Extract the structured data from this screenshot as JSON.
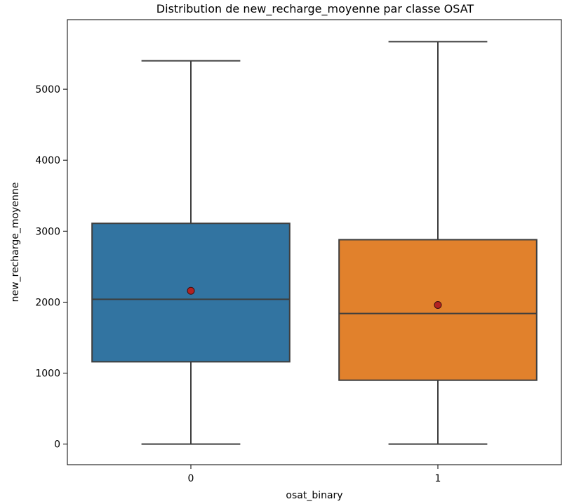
{
  "chart_data": {
    "type": "boxplot",
    "title": "Distribution de new_recharge_moyenne par classe OSAT",
    "xlabel": "osat_binary",
    "ylabel": "new_recharge_moyenne",
    "categories": [
      "0",
      "1"
    ],
    "yticks": [
      "0",
      "1000",
      "2000",
      "3000",
      "4000",
      "5000"
    ],
    "ytick_values": [
      0,
      1000,
      2000,
      3000,
      4000,
      5000
    ],
    "ylim": [
      -290,
      5980
    ],
    "grid": false,
    "legend": "none",
    "boxes": [
      {
        "category": "0",
        "whisker_low": 0,
        "q1": 1160,
        "median": 2040,
        "q3": 3110,
        "whisker_high": 5400,
        "mean": 2160,
        "color": "#3274a1"
      },
      {
        "category": "1",
        "whisker_low": 0,
        "q1": 900,
        "median": 1840,
        "q3": 2880,
        "whisker_high": 5670,
        "mean": 1960,
        "color": "#e1812c"
      }
    ],
    "mean_marker_color": "#b22222",
    "line_color": "#3d3d3d"
  }
}
